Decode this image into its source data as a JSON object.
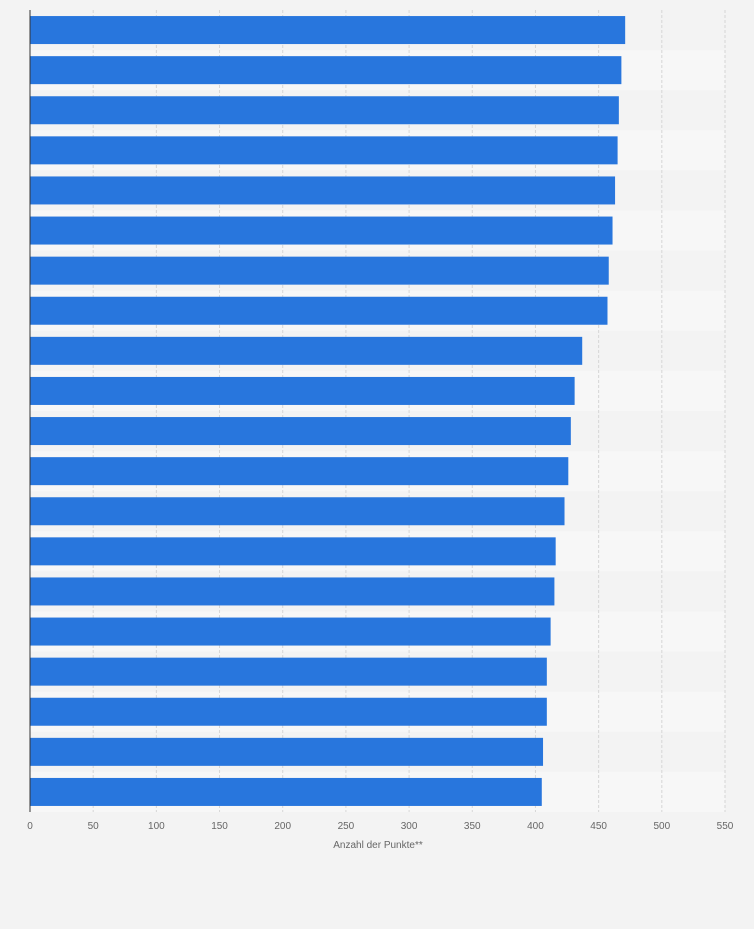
{
  "chart_data": {
    "type": "bar",
    "orientation": "horizontal",
    "title": "",
    "xlabel": "Anzahl der Punkte**",
    "ylabel": "",
    "xlim": [
      0,
      550
    ],
    "xticks": [
      0,
      50,
      100,
      150,
      200,
      250,
      300,
      350,
      400,
      450,
      500,
      550
    ],
    "tick_labels": [
      "0",
      "50",
      "100",
      "150",
      "200",
      "250",
      "300",
      "350",
      "400",
      "450",
      "500",
      "550"
    ],
    "grid": "vertical dashed",
    "categories": [
      "",
      "",
      "",
      "",
      "",
      "",
      "",
      "",
      "",
      "",
      "",
      "",
      "",
      "",
      "",
      "",
      "",
      "",
      "",
      ""
    ],
    "values": [
      471,
      468,
      466,
      465,
      463,
      461,
      458,
      457,
      437,
      431,
      428,
      426,
      423,
      416,
      415,
      412,
      409,
      409,
      406,
      405
    ],
    "bar_color": "#2876dd",
    "band_colors": [
      "#f3f3f3",
      "#f7f7f7"
    ]
  }
}
